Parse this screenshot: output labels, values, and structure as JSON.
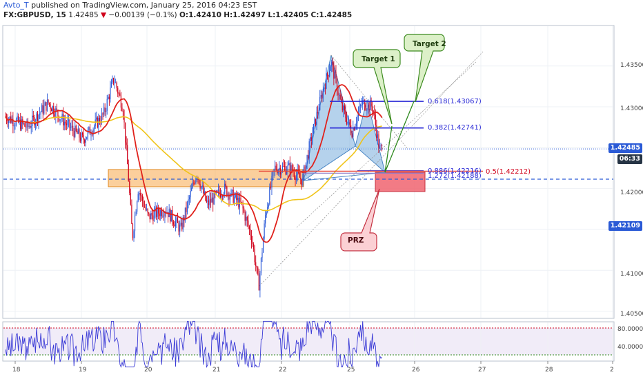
{
  "header": {
    "author": "Avto_T",
    "published": "published on TradingView.com, January 25, 2016 04:23 EST",
    "symbol": "FX:GBPUSD, 15",
    "last": "1.42485",
    "change_arrow": "▼",
    "change": "−0.00139 (−0.1%)",
    "o": "O:1.42410",
    "h": "H:1.42497",
    "l": "L:1.42405",
    "c": "C:1.42485"
  },
  "price_axis": {
    "ticks": [
      "1.43500",
      "1.43000",
      "1.42000",
      "1.41000",
      "1.40500"
    ],
    "last_price_tag": "1.42485",
    "countdown_tag": "06:33",
    "level_tag": "1.42109"
  },
  "rsi_axis": {
    "ticks": [
      "80.0000",
      "40.0000"
    ]
  },
  "time_axis": {
    "ticks": [
      "18",
      "19",
      "20",
      "21",
      "22",
      "25",
      "26",
      "27",
      "28",
      "2"
    ]
  },
  "annotations": {
    "target1": "Target 1",
    "target2": "Target 2",
    "prz": "PRZ",
    "fib618": "0.618(1.43067)",
    "fib382": "0.382(1.42741)",
    "fib886": "0.886(1.42216)",
    "fib1272": "1.272(1.42188)",
    "fib05": "0.5(1.42212)"
  },
  "colors": {
    "bull": "#2b5ad8",
    "bear": "#d0021b",
    "ema_red": "#e0211b",
    "sma_yellow": "#f0c419",
    "zone_orange": "#f7a84a",
    "prz_red": "#f06470",
    "harmonic_blue": "#5b9bd5",
    "fib_blue": "#2a2ad6",
    "rsi": "#3a3ad6"
  },
  "chart_data": {
    "type": "line",
    "symbol": "GBPUSD",
    "timeframe": "15",
    "x_ticks": [
      "18",
      "19",
      "20",
      "21",
      "22",
      "25",
      "26",
      "27",
      "28",
      "2"
    ],
    "ylim": [
      1.4045,
      1.4385
    ],
    "price_series": [
      {
        "x": "18",
        "close": 1.429
      },
      {
        "x": "19",
        "close": 1.4265
      },
      {
        "x": "19",
        "close": 1.4335
      },
      {
        "x": "19",
        "close": 1.43
      },
      {
        "x": "20",
        "close": 1.418
      },
      {
        "x": "20",
        "close": 1.4195
      },
      {
        "x": "21",
        "close": 1.4185
      },
      {
        "x": "21",
        "close": 1.419
      },
      {
        "x": "21",
        "close": 1.408
      },
      {
        "x": "22",
        "close": 1.423
      },
      {
        "x": "22",
        "close": 1.422
      },
      {
        "x": "22",
        "close": 1.429
      },
      {
        "x": "25",
        "close": 1.4355
      },
      {
        "x": "25",
        "close": 1.427
      },
      {
        "x": "25",
        "close": 1.4305
      },
      {
        "x": "25",
        "close": 1.4248
      }
    ],
    "levels": [
      {
        "label": "0.618",
        "value": 1.43067
      },
      {
        "label": "0.382",
        "value": 1.42741
      },
      {
        "label": "0.886",
        "value": 1.42216
      },
      {
        "label": "1.272",
        "value": 1.42188
      },
      {
        "label": "0.5",
        "value": 1.42212
      }
    ],
    "last_price": 1.42485,
    "support_line": 1.42109,
    "rsi": {
      "ticks": [
        80,
        40
      ],
      "last": 30
    }
  }
}
